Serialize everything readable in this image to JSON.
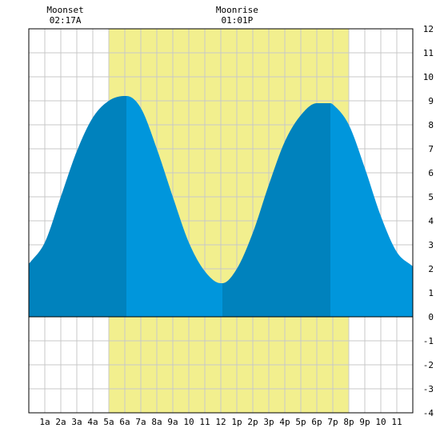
{
  "chart_data": {
    "type": "area",
    "title": "",
    "xlabel": "",
    "ylabel": "",
    "xlim": [
      0,
      24
    ],
    "ylim": [
      -4,
      12
    ],
    "grid": true,
    "x_tick_labels": [
      "1a",
      "2a",
      "3a",
      "4a",
      "5a",
      "6a",
      "7a",
      "8a",
      "9a",
      "10",
      "11",
      "12",
      "1p",
      "2p",
      "3p",
      "4p",
      "5p",
      "6p",
      "7p",
      "8p",
      "9p",
      "10",
      "11"
    ],
    "y_tick_labels": [
      "12",
      "11",
      "10",
      "9",
      "8",
      "7",
      "6",
      "5",
      "4",
      "3",
      "2",
      "1",
      "0",
      "-1",
      "-2",
      "-3",
      "-4"
    ],
    "moon_events": [
      {
        "label": "Moonset",
        "time": "02:17A",
        "hour": 2.28
      },
      {
        "label": "Moonrise",
        "time": "01:01P",
        "hour": 13.02
      }
    ],
    "moon_up_band": {
      "start_hour": 5.0,
      "end_hour": 20.0
    },
    "tide_extremes": [
      {
        "hour": 6.1,
        "height": 9.2,
        "kind": "high"
      },
      {
        "hour": 12.1,
        "height": 1.4,
        "kind": "low"
      },
      {
        "hour": 18.85,
        "height": 8.9,
        "kind": "high"
      }
    ],
    "tide_series": {
      "x": [
        0,
        1,
        2,
        3,
        4,
        5,
        6,
        6.1,
        7,
        8,
        9,
        10,
        11,
        12,
        12.1,
        13,
        14,
        15,
        16,
        17,
        18,
        18.85,
        19,
        20,
        21,
        22,
        23,
        24
      ],
      "y": [
        2.2,
        3.1,
        5.0,
        6.9,
        8.3,
        9.0,
        9.2,
        9.2,
        8.7,
        7.0,
        5.0,
        3.1,
        1.9,
        1.4,
        1.4,
        2.0,
        3.5,
        5.5,
        7.3,
        8.4,
        8.9,
        8.9,
        8.85,
        8.0,
        6.2,
        4.2,
        2.7,
        2.1
      ]
    },
    "colors": {
      "moon_band": "#f2ef8e",
      "tide_dark": "#0082bd",
      "tide_light": "#0096dc",
      "grid": "#c8c8c8",
      "zero_line": "#000000"
    }
  }
}
